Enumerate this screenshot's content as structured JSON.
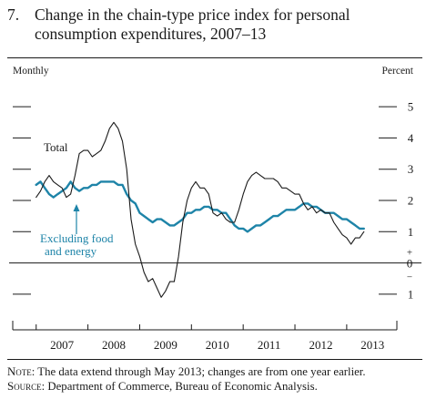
{
  "figure": {
    "number": "7.",
    "title": "Change in the chain-type price index for personal consumption expenditures, 2007–13",
    "left_unit": "Monthly",
    "right_unit": "Percent",
    "note_label": "Note:",
    "note_text": "The data extend through May 2013; changes are from one year earlier.",
    "source_label": "Source:",
    "source_text": "Department of Commerce, Bureau of Economic Analysis."
  },
  "chart_data": {
    "type": "line",
    "title": "Change in the chain-type price index for personal consumption expenditures, 2007–13",
    "xlabel": "",
    "ylabel": "Percent",
    "ylim": [
      -1.5,
      5.5
    ],
    "yticks": [
      -1,
      0,
      1,
      2,
      3,
      4,
      5
    ],
    "ytick_labels": [
      "1",
      "0",
      "1",
      "2",
      "3",
      "4",
      "5"
    ],
    "zero_line_label": "+ 0 −",
    "x_tick_labels": [
      "2007",
      "2008",
      "2009",
      "2010",
      "2011",
      "2012",
      "2013"
    ],
    "x_start": "2006-12",
    "x_end": "2013-12",
    "grid": false,
    "annotations": [
      {
        "text": "Total",
        "series": "Total"
      },
      {
        "text": "Excluding food and energy",
        "lines": [
          "Excluding food",
          "and energy"
        ],
        "series": "Excluding food and energy"
      }
    ],
    "series": [
      {
        "name": "Total",
        "color": "#1a1a1a",
        "x": [
          "2007-01",
          "2007-02",
          "2007-03",
          "2007-04",
          "2007-05",
          "2007-06",
          "2007-07",
          "2007-08",
          "2007-09",
          "2007-10",
          "2007-11",
          "2007-12",
          "2008-01",
          "2008-02",
          "2008-03",
          "2008-04",
          "2008-05",
          "2008-06",
          "2008-07",
          "2008-08",
          "2008-09",
          "2008-10",
          "2008-11",
          "2008-12",
          "2009-01",
          "2009-02",
          "2009-03",
          "2009-04",
          "2009-05",
          "2009-06",
          "2009-07",
          "2009-08",
          "2009-09",
          "2009-10",
          "2009-11",
          "2009-12",
          "2010-01",
          "2010-02",
          "2010-03",
          "2010-04",
          "2010-05",
          "2010-06",
          "2010-07",
          "2010-08",
          "2010-09",
          "2010-10",
          "2010-11",
          "2010-12",
          "2011-01",
          "2011-02",
          "2011-03",
          "2011-04",
          "2011-05",
          "2011-06",
          "2011-07",
          "2011-08",
          "2011-09",
          "2011-10",
          "2011-11",
          "2011-12",
          "2012-01",
          "2012-02",
          "2012-03",
          "2012-04",
          "2012-05",
          "2012-06",
          "2012-07",
          "2012-08",
          "2012-09",
          "2012-10",
          "2012-11",
          "2012-12",
          "2013-01",
          "2013-02",
          "2013-03",
          "2013-04",
          "2013-05"
        ],
        "values": [
          2.1,
          2.3,
          2.6,
          2.8,
          2.6,
          2.5,
          2.4,
          2.1,
          2.2,
          2.8,
          3.5,
          3.6,
          3.6,
          3.4,
          3.5,
          3.6,
          3.9,
          4.3,
          4.5,
          4.3,
          3.9,
          3.0,
          1.4,
          0.6,
          0.2,
          -0.3,
          -0.6,
          -0.5,
          -0.8,
          -1.1,
          -0.9,
          -0.6,
          -0.6,
          0.2,
          1.3,
          2.0,
          2.4,
          2.6,
          2.4,
          2.4,
          2.2,
          1.6,
          1.5,
          1.6,
          1.4,
          1.3,
          1.3,
          1.7,
          2.2,
          2.6,
          2.8,
          2.9,
          2.8,
          2.7,
          2.7,
          2.7,
          2.6,
          2.4,
          2.4,
          2.3,
          2.2,
          2.2,
          1.9,
          1.7,
          1.8,
          1.6,
          1.7,
          1.6,
          1.6,
          1.3,
          1.1,
          0.9,
          0.8,
          0.6,
          0.8,
          0.8,
          1.0
        ]
      },
      {
        "name": "Excluding food and energy",
        "color": "#1e84a8",
        "x": [
          "2007-01",
          "2007-02",
          "2007-03",
          "2007-04",
          "2007-05",
          "2007-06",
          "2007-07",
          "2007-08",
          "2007-09",
          "2007-10",
          "2007-11",
          "2007-12",
          "2008-01",
          "2008-02",
          "2008-03",
          "2008-04",
          "2008-05",
          "2008-06",
          "2008-07",
          "2008-08",
          "2008-09",
          "2008-10",
          "2008-11",
          "2008-12",
          "2009-01",
          "2009-02",
          "2009-03",
          "2009-04",
          "2009-05",
          "2009-06",
          "2009-07",
          "2009-08",
          "2009-09",
          "2009-10",
          "2009-11",
          "2009-12",
          "2010-01",
          "2010-02",
          "2010-03",
          "2010-04",
          "2010-05",
          "2010-06",
          "2010-07",
          "2010-08",
          "2010-09",
          "2010-10",
          "2010-11",
          "2010-12",
          "2011-01",
          "2011-02",
          "2011-03",
          "2011-04",
          "2011-05",
          "2011-06",
          "2011-07",
          "2011-08",
          "2011-09",
          "2011-10",
          "2011-11",
          "2011-12",
          "2012-01",
          "2012-02",
          "2012-03",
          "2012-04",
          "2012-05",
          "2012-06",
          "2012-07",
          "2012-08",
          "2012-09",
          "2012-10",
          "2012-11",
          "2012-12",
          "2013-01",
          "2013-02",
          "2013-03",
          "2013-04",
          "2013-05"
        ],
        "values": [
          2.5,
          2.6,
          2.4,
          2.2,
          2.1,
          2.2,
          2.3,
          2.4,
          2.6,
          2.4,
          2.3,
          2.4,
          2.4,
          2.5,
          2.5,
          2.6,
          2.6,
          2.6,
          2.6,
          2.5,
          2.5,
          2.2,
          2.0,
          1.9,
          1.6,
          1.5,
          1.4,
          1.3,
          1.4,
          1.4,
          1.3,
          1.2,
          1.2,
          1.3,
          1.4,
          1.6,
          1.6,
          1.7,
          1.7,
          1.8,
          1.8,
          1.7,
          1.7,
          1.6,
          1.6,
          1.4,
          1.2,
          1.1,
          1.1,
          1.0,
          1.1,
          1.2,
          1.2,
          1.3,
          1.4,
          1.5,
          1.5,
          1.6,
          1.7,
          1.7,
          1.7,
          1.8,
          1.9,
          1.9,
          1.8,
          1.8,
          1.7,
          1.6,
          1.6,
          1.6,
          1.5,
          1.4,
          1.4,
          1.3,
          1.2,
          1.1,
          1.1
        ]
      }
    ]
  }
}
